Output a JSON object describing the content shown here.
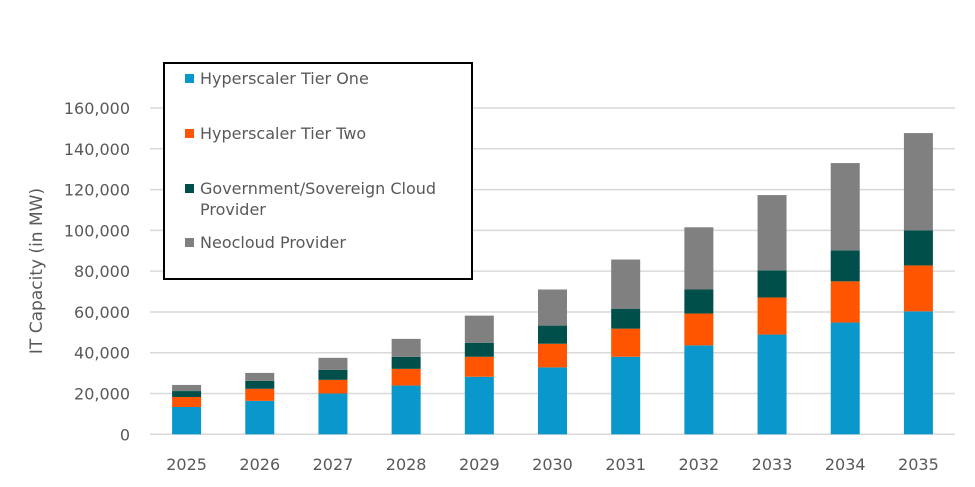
{
  "chart_data": {
    "type": "bar",
    "stacked": true,
    "ylabel": "IT Capacity (in MW)",
    "ylim": [
      0,
      160000
    ],
    "yticks": [
      "0",
      "20,000",
      "40,000",
      "60,000",
      "80,000",
      "100,000",
      "120,000",
      "140,000",
      "160,000"
    ],
    "ytick_values": [
      0,
      20000,
      40000,
      60000,
      80000,
      100000,
      120000,
      140000,
      160000
    ],
    "grid": true,
    "legend_placement": "top-left",
    "categories": [
      "2025",
      "2026",
      "2027",
      "2028",
      "2029",
      "2030",
      "2031",
      "2032",
      "2033",
      "2034",
      "2035"
    ],
    "series": [
      {
        "name": "Hyperscaler Tier One",
        "color": "#0a97cc",
        "values": [
          13400,
          16400,
          20000,
          23900,
          28200,
          32800,
          38000,
          43600,
          48900,
          54800,
          60300
        ]
      },
      {
        "name": "Hyperscaler Tier Two",
        "color": "#ff5500",
        "values": [
          4900,
          5900,
          6700,
          8200,
          9800,
          11600,
          13800,
          15600,
          18200,
          20200,
          22500
        ]
      },
      {
        "name": "Government/Sovereign Cloud Provider",
        "color": "#004f4a",
        "values": [
          2900,
          3900,
          4900,
          5900,
          6900,
          8900,
          9800,
          11800,
          13300,
          15200,
          17200
        ]
      },
      {
        "name": "Neocloud Provider",
        "color": "#808080",
        "values": [
          3000,
          3900,
          5900,
          8800,
          13300,
          17700,
          24100,
          30500,
          36900,
          42800,
          47700
        ]
      }
    ]
  }
}
